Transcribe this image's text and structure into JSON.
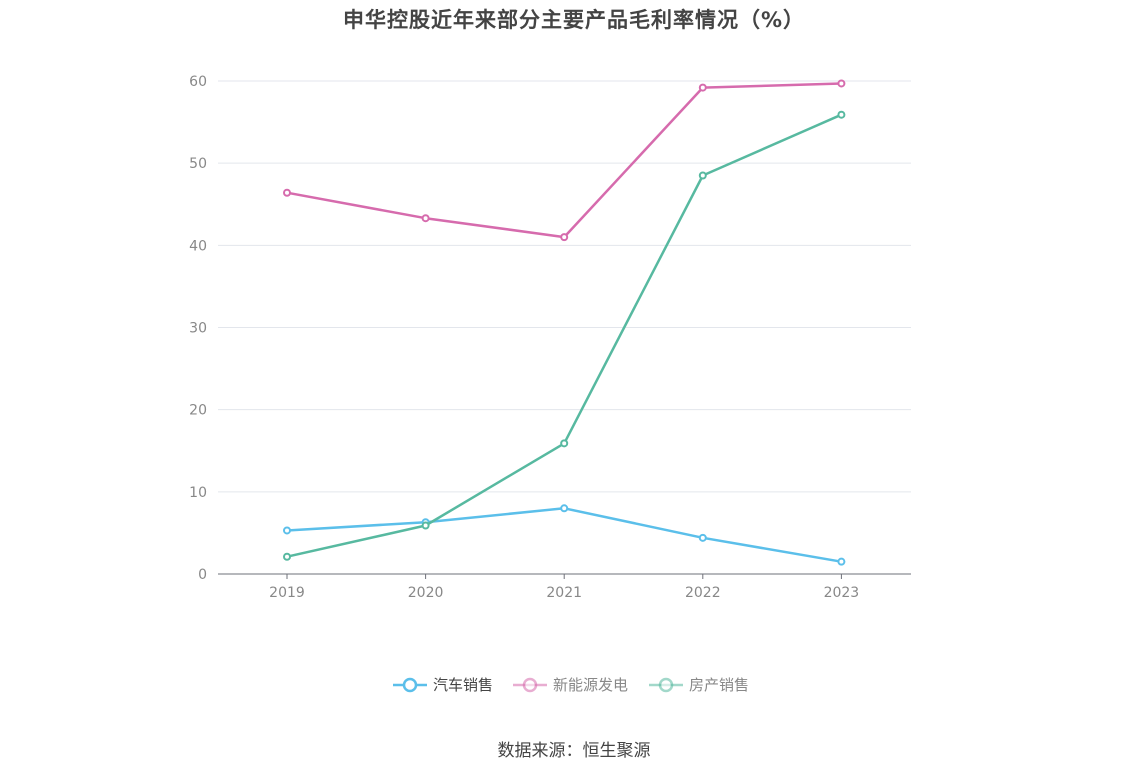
{
  "title": "申华控股近年来部分主要产品毛利率情况（%）",
  "source": "数据来源：恒生聚源",
  "chart_data": {
    "type": "line",
    "title": "申华控股近年来部分主要产品毛利率情况（%）",
    "xlabel": "",
    "ylabel": "",
    "categories": [
      "2019",
      "2020",
      "2021",
      "2022",
      "2023"
    ],
    "ylim": [
      0,
      60
    ],
    "yticks": [
      0,
      10,
      20,
      30,
      40,
      50,
      60
    ],
    "grid": true,
    "legend_position": "bottom",
    "series": [
      {
        "name": "汽车销售",
        "color": "#5bbfea",
        "values": [
          5.3,
          6.3,
          8.0,
          4.4,
          1.5
        ]
      },
      {
        "name": "新能源发电",
        "color": "#d66bad",
        "values": [
          46.4,
          43.3,
          41.0,
          59.2,
          59.7
        ]
      },
      {
        "name": "房产销售",
        "color": "#57b9a0",
        "values": [
          2.1,
          5.9,
          15.9,
          48.5,
          55.9
        ]
      }
    ]
  }
}
